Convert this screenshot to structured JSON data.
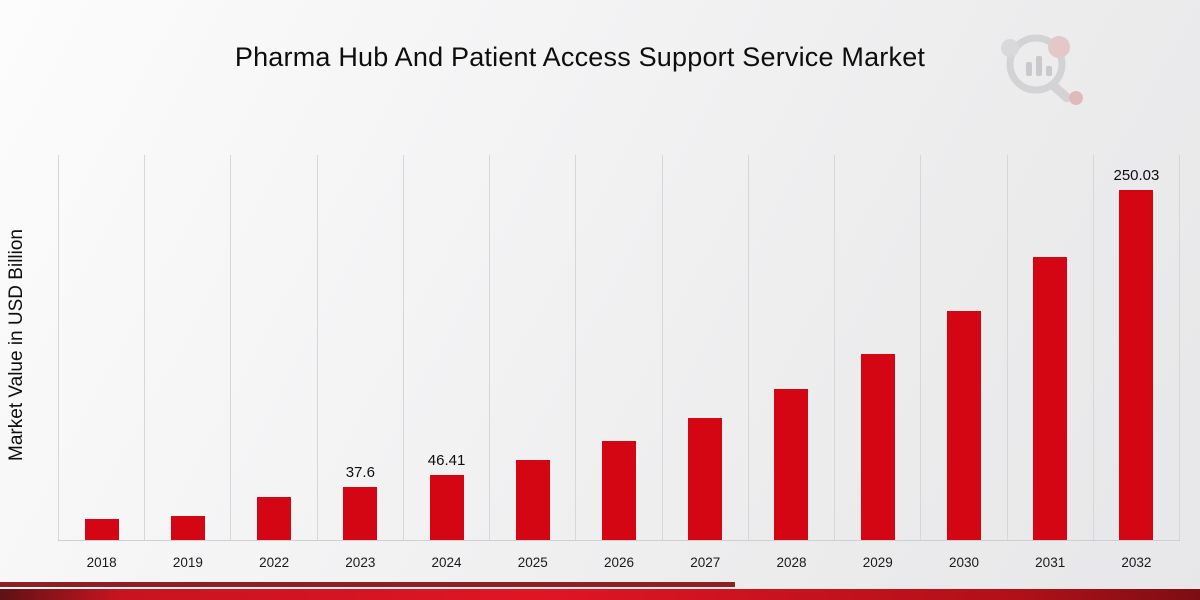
{
  "title": "Pharma Hub And Patient Access Support Service Market",
  "y_axis_label": "Market Value in USD Billion",
  "logo": {
    "name": "market-research-magnifier-logo"
  },
  "chart_data": {
    "type": "bar",
    "title": "Pharma Hub And Patient Access Support Service Market",
    "ylabel": "Market Value in USD Billion",
    "xlabel": "",
    "categories": [
      "2018",
      "2019",
      "2022",
      "2023",
      "2024",
      "2025",
      "2026",
      "2027",
      "2028",
      "2029",
      "2030",
      "2031",
      "2032"
    ],
    "values": [
      15,
      17.5,
      30.5,
      37.6,
      46.41,
      57.3,
      70.7,
      87.2,
      107.6,
      132.8,
      163.9,
      202.2,
      250.03
    ],
    "data_labels": [
      "",
      "",
      "",
      "37.6",
      "46.41",
      "",
      "",
      "",
      "",
      "",
      "",
      "",
      "250.03"
    ],
    "ylim": [
      0,
      275
    ],
    "bar_color": "#d40613",
    "grid": "vertical",
    "legend": "none",
    "units": "USD Billion"
  }
}
